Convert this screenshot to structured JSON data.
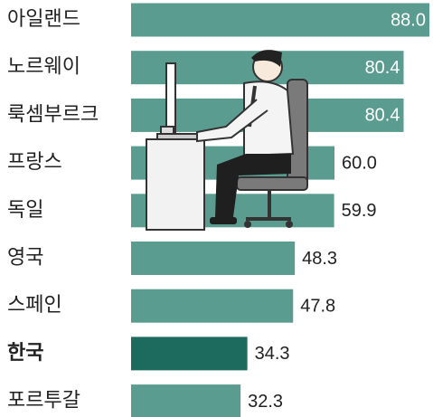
{
  "chart_data": {
    "type": "bar",
    "orientation": "horizontal",
    "categories": [
      "아일랜드",
      "노르웨이",
      "룩셈부르크",
      "프랑스",
      "독일",
      "영국",
      "스페인",
      "한국",
      "포르투갈"
    ],
    "values": [
      88.0,
      80.4,
      80.4,
      60.0,
      59.9,
      48.3,
      47.8,
      34.3,
      32.3
    ],
    "value_labels": [
      "88.0",
      "80.4",
      "80.4",
      "60.0",
      "59.9",
      "48.3",
      "47.8",
      "34.3",
      "32.3"
    ],
    "color": "#5b9c90",
    "colors": [
      "#5b9c90",
      "#5b9c90",
      "#5b9c90",
      "#5b9c90",
      "#5b9c90",
      "#5b9c90",
      "#5b9c90",
      "#1d6b5e",
      "#5b9c90"
    ]
  }
}
